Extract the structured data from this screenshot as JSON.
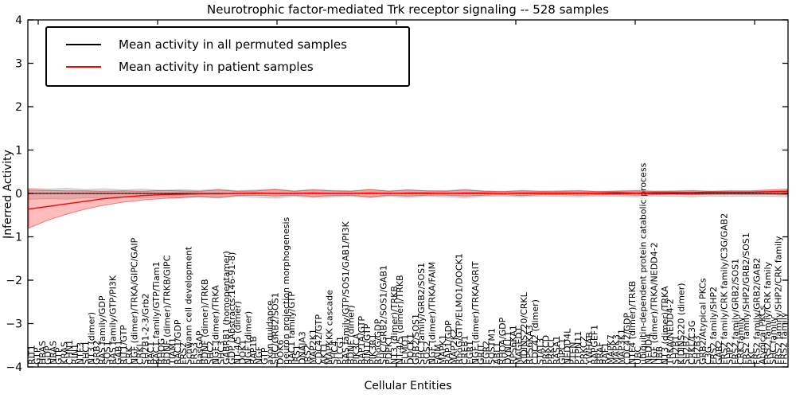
{
  "title": "Neurotrophic factor-mediated Trk receptor signaling -- 528 samples",
  "legend": {
    "items": [
      {
        "label": "Mean activity in all permuted samples",
        "color": "#000000"
      },
      {
        "label": "Mean activity in patient samples",
        "color": "#ff0000"
      }
    ]
  },
  "axes": {
    "xlabel": "Cellular Entities",
    "ylabel": "Inferred Activity",
    "ytick_labels": [
      "4",
      "3",
      "2",
      "1",
      "0",
      "−1",
      "−2",
      "−3",
      "−4"
    ]
  },
  "chart_data": {
    "type": "line",
    "title": "Neurotrophic factor-mediated Trk receptor signaling -- 528 samples",
    "xlabel": "Cellular Entities",
    "ylabel": "Inferred Activity",
    "ylim": [
      -4,
      4
    ],
    "grid": false,
    "legend_position": "upper left",
    "zero_line_dotted": true,
    "colors": {
      "permuted_line": "#000000",
      "permuted_band": "rgba(128,128,128,0.25)",
      "patient_line": "#ff0000",
      "patient_band": "rgba(255,50,50,0.32)",
      "patient_band_edge": "rgba(220,0,0,0.45)"
    },
    "categories": [
      "RIT1",
      "GTP",
      "HRAS",
      "GDP",
      "NRAS",
      "GTP",
      "KRAS",
      "CHN1",
      "RIN1",
      "NTF3",
      "SHC1",
      "NT3 (dimer)",
      "GRB2",
      "RAS family/GDP",
      "SOS1",
      "RAS family/GTP/PI3K",
      "GAB1",
      "RIT1/GTP",
      "CRK",
      "NGF (dimer)/TRKA/GIPC/GAIP",
      "CRKL",
      "SH2B1-2-3/Grb2",
      "RAC1",
      "RAC1 family/GTP/Tiam1",
      "RHOG",
      "BDNF (dimer)/TRKB/GIPC",
      "TIAM1",
      "RAC1/GDP",
      "FRS2",
      "Schwann cell development",
      "FRS3",
      "RasGAP",
      "BDNF (dimer)/TRKB",
      "SHC2",
      "NGF (dimer)/TRKA",
      "SHC3",
      "GABRB1 (homopentamer)",
      "GDP (Abstracts:146-91-8)",
      "NT-4/5 (dimer)",
      "DOK1",
      "NGF (dimer)",
      "RAP1B",
      "NGF",
      "GTP",
      "axon guidance",
      "SHC/GRB2/SOS1",
      "DOK6",
      "neuron projection morphogenesis",
      "RAC1 family/GTP",
      "IRS1",
      "DNAJA3",
      "IRS2",
      "MAP2K1",
      "CDC42/GTP",
      "AKT1",
      "MAPKKK cascade",
      "SHC4",
      "PLCG1",
      "RAS family/GTP/SOS1/GAB1/PI3K",
      "BDNF (dimer)",
      "PIK3CA",
      "RAP1A/GTP",
      "RIN1/GTP",
      "PIK3R1",
      "RhoG/GDP",
      "SHC/GRB2/SOS1/GAB1",
      "PDPK1",
      "NT3 (dimer)/TRKB",
      "NT-4/5 (dimer)/TRKB",
      "ELMO1",
      "DOCK1",
      "GRB2/SOS1",
      "SHC family/GRB2/SOS1",
      "SOS2",
      "NGF (dimer)/TRKA/FAIM",
      "FAIM",
      "MAPK1",
      "RAP1/GDP",
      "MAP2K2",
      "RhoG/GTP/ELMO1/DOCK1",
      "CREB1",
      "EGR1",
      "NGF (dimer)/TRKA/GRIT",
      "GRIT",
      "EGR2",
      "SQSTM1",
      "ABL1",
      "RHOA/GDP",
      "DYNLL1",
      "RPS6KA1",
      "MAGED1",
      "KIDINS220/CRKL",
      "RPS6KA3",
      "CDC42 (dimer)",
      "STAT3",
      "PRKCD",
      "PRKCI",
      "RASA1",
      "GIPC1",
      "NEDD4L",
      "PTEN",
      "PTPN11",
      "PRKCZ",
      "YWHAB",
      "RAPGEF1",
      "BRAF",
      "RAF1",
      "MAPK7",
      "MAPK3",
      "MAP3K1",
      "CDC42/GDP",
      "NTF4 (dimer)/TRKB",
      "UBC",
      "ubiquitin-dependent protein catabolic process",
      "NEDD4",
      "NGF (dimer)/TRKA/NEDD4-2",
      "UBB",
      "NT3 (dimer)/TRKA",
      "TRKA/NEDD4-2",
      "SH2B1",
      "KIDINS220 (dimer)",
      "SH2B2",
      "CRKL/C3G",
      "SH2B3",
      "GRB2/Atypical PKCs",
      "C3G",
      "FRS2 family/SHP2",
      "GAB2",
      "FRS2 family/CRK family/C3G/GAB2",
      "SHP2",
      "FRS2 family/GRB2/SOS1",
      "CRK family",
      "FRS2 family/SHP2/GRB2/SOS1",
      "PKC",
      "FRS2 family/GRB2/GAB2",
      "Atypical PKCs",
      "FRS2 family/CRK family",
      "SHC family",
      "FRS2 family/SHP2/CRK family",
      "FRS2 family"
    ],
    "series": [
      {
        "name": "Mean activity in all permuted samples",
        "mean": [
          0,
          0,
          0,
          0,
          0,
          0,
          0,
          0,
          0,
          0,
          0,
          0,
          0,
          0,
          0,
          0,
          0,
          0,
          0,
          0,
          0,
          0,
          0,
          0,
          0,
          0,
          0,
          0,
          0,
          0,
          0,
          0,
          0,
          0,
          0,
          0,
          0,
          0,
          0,
          0,
          0
        ],
        "band_lo": [
          -0.14,
          -0.12,
          -0.13,
          -0.1,
          -0.12,
          -0.09,
          -0.11,
          -0.08,
          -0.1,
          -0.08,
          -0.11,
          -0.07,
          -0.09,
          -0.11,
          -0.07,
          -0.1,
          -0.08,
          -0.07,
          -0.1,
          -0.07,
          -0.09,
          -0.07,
          -0.08,
          -0.1,
          -0.07,
          -0.06,
          -0.08,
          -0.06,
          -0.07,
          -0.08,
          -0.06,
          -0.07,
          -0.08,
          -0.06,
          -0.07,
          -0.08,
          -0.06,
          -0.07,
          -0.06,
          -0.07,
          -0.08
        ],
        "band_hi": [
          0.12,
          0.1,
          0.12,
          0.09,
          0.11,
          0.08,
          0.1,
          0.07,
          0.09,
          0.07,
          0.1,
          0.06,
          0.08,
          0.1,
          0.06,
          0.09,
          0.07,
          0.06,
          0.09,
          0.06,
          0.08,
          0.06,
          0.07,
          0.09,
          0.06,
          0.05,
          0.07,
          0.05,
          0.06,
          0.07,
          0.05,
          0.06,
          0.07,
          0.05,
          0.06,
          0.07,
          0.05,
          0.06,
          0.05,
          0.06,
          0.07
        ]
      },
      {
        "name": "Mean activity in patient samples",
        "mean": [
          -0.36,
          -0.3,
          -0.24,
          -0.18,
          -0.12,
          -0.08,
          -0.05,
          -0.03,
          -0.02,
          -0.01,
          -0.01,
          0.0,
          0.01,
          0.0,
          0.0,
          0.01,
          0.0,
          0.0,
          0.01,
          0.0,
          0.01,
          0.01,
          0.0,
          0.01,
          0.01,
          0.0,
          0.01,
          0.01,
          0.01,
          0.01,
          0.01,
          0.02,
          0.01,
          0.02,
          0.02,
          0.02,
          0.03,
          0.03,
          0.03,
          0.04,
          0.05
        ],
        "band_lo": [
          -0.8,
          -0.62,
          -0.48,
          -0.36,
          -0.27,
          -0.2,
          -0.15,
          -0.12,
          -0.1,
          -0.07,
          -0.09,
          -0.05,
          -0.04,
          -0.06,
          -0.04,
          -0.07,
          -0.05,
          -0.04,
          -0.08,
          -0.04,
          -0.06,
          -0.04,
          -0.04,
          -0.06,
          -0.04,
          -0.03,
          -0.05,
          -0.03,
          -0.03,
          -0.04,
          -0.03,
          -0.03,
          -0.04,
          -0.03,
          -0.02,
          -0.03,
          -0.02,
          -0.02,
          -0.02,
          -0.02,
          -0.03
        ],
        "band_hi": [
          0.08,
          0.07,
          0.06,
          0.06,
          0.05,
          0.06,
          0.05,
          0.07,
          0.06,
          0.05,
          0.08,
          0.05,
          0.06,
          0.09,
          0.05,
          0.08,
          0.06,
          0.05,
          0.09,
          0.05,
          0.08,
          0.06,
          0.05,
          0.08,
          0.05,
          0.04,
          0.06,
          0.05,
          0.05,
          0.06,
          0.04,
          0.05,
          0.06,
          0.05,
          0.05,
          0.06,
          0.05,
          0.06,
          0.06,
          0.08,
          0.1
        ]
      }
    ]
  }
}
